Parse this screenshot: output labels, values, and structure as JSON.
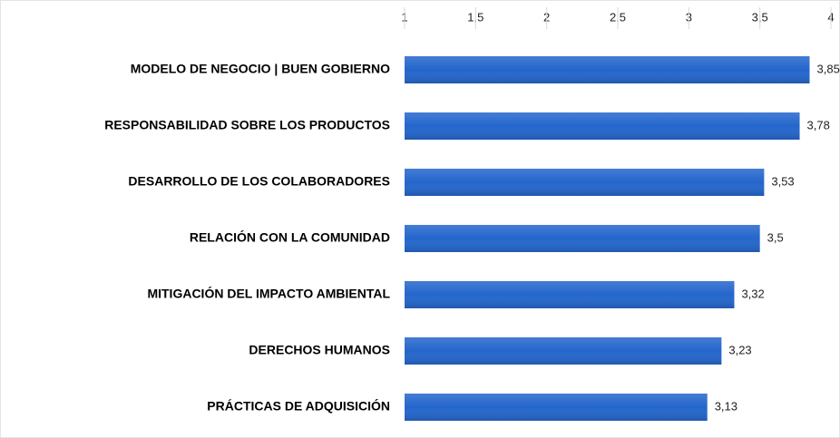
{
  "chart_data": {
    "type": "bar",
    "orientation": "horizontal",
    "categories": [
      "MODELO DE NEGOCIO | BUEN GOBIERNO",
      "RESPONSABILIDAD SOBRE LOS PRODUCTOS",
      "DESARROLLO DE LOS COLABORADORES",
      "RELACIÓN CON LA COMUNIDAD",
      "MITIGACIÓN DEL IMPACTO AMBIENTAL",
      "DERECHOS HUMANOS",
      "PRÁCTICAS DE ADQUISICIÓN"
    ],
    "values": [
      3.85,
      3.78,
      3.53,
      3.5,
      3.32,
      3.23,
      3.13
    ],
    "value_labels": [
      "3,85",
      "3,78",
      "3,53",
      "3,5",
      "3,32",
      "3,23",
      "3,13"
    ],
    "color": "#2466cc",
    "xlim": [
      1,
      4
    ],
    "xticks": [
      1,
      {
        "value": 1.5,
        "label": "1,5"
      },
      2,
      {
        "value": 2.5,
        "label": "2,5"
      },
      3,
      {
        "value": 3.5,
        "label": "3,5"
      },
      4
    ],
    "grid": false
  }
}
